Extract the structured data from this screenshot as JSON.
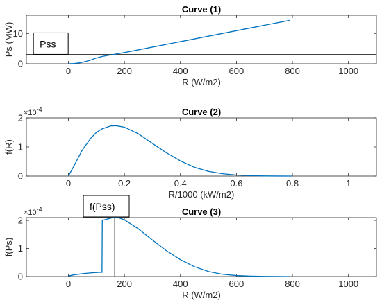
{
  "colors": {
    "line": "#0072BD",
    "axis": "#262626"
  },
  "chart_data": [
    {
      "type": "line",
      "title": "Curve (1)",
      "xlabel": "R (W/m2)",
      "ylabel": "Ps (MW)",
      "xlim": [
        -150,
        1100
      ],
      "ylim": [
        0,
        16
      ],
      "xticks": [
        0,
        200,
        400,
        600,
        800,
        1000
      ],
      "yticks": [
        0,
        10
      ],
      "ytick_labels": [
        "0",
        "10"
      ],
      "exponent_label": "",
      "grid": false,
      "series": [
        {
          "x": [
            0,
            20,
            40,
            60,
            80,
            100,
            120,
            140,
            160,
            200,
            300,
            400,
            500,
            600,
            700,
            790
          ],
          "y": [
            0,
            0.08,
            0.3,
            0.7,
            1.25,
            1.9,
            2.4,
            2.75,
            3.05,
            3.7,
            5.5,
            7.3,
            9.1,
            10.9,
            12.7,
            14.3
          ]
        }
      ],
      "hline": 3.1,
      "vline": null,
      "annotation": {
        "text": "Pss",
        "x": -100,
        "y": 3.1,
        "anchor": "bottom-left"
      }
    },
    {
      "type": "line",
      "title": "Curve (2)",
      "xlabel": "R/1000 (kW/m2)",
      "ylabel": "f(R)",
      "xlim": [
        -0.15,
        1.1
      ],
      "ylim": [
        0,
        2
      ],
      "xticks": [
        0,
        0.2,
        0.4,
        0.6,
        0.8,
        1
      ],
      "yticks": [
        0,
        1,
        2
      ],
      "ytick_labels": [
        "0",
        "1",
        "2"
      ],
      "exponent_label": "×10",
      "exponent_power": "-4",
      "grid": false,
      "series": [
        {
          "x": [
            0,
            0.02,
            0.05,
            0.08,
            0.1,
            0.12,
            0.15,
            0.17,
            0.2,
            0.25,
            0.3,
            0.35,
            0.4,
            0.45,
            0.5,
            0.55,
            0.6,
            0.65,
            0.7,
            0.75,
            0.8
          ],
          "y": [
            0,
            0.35,
            0.9,
            1.3,
            1.5,
            1.62,
            1.72,
            1.73,
            1.68,
            1.45,
            1.12,
            0.8,
            0.52,
            0.3,
            0.16,
            0.08,
            0.035,
            0.015,
            0.005,
            0.002,
            0
          ]
        }
      ],
      "hline": null,
      "vline": null,
      "annotation": null
    },
    {
      "type": "line",
      "title": "Curve (3)",
      "xlabel": "R (W/m2)",
      "ylabel": "f(Ps)",
      "xlim": [
        -150,
        1100
      ],
      "ylim": [
        0,
        2.1
      ],
      "xticks": [
        0,
        200,
        400,
        600,
        800,
        1000
      ],
      "yticks": [
        0,
        1,
        2
      ],
      "ytick_labels": [
        "0",
        "1",
        "2"
      ],
      "exponent_label": "×10",
      "exponent_power": "-4",
      "grid": false,
      "series": [
        {
          "x": [
            0,
            20,
            50,
            80,
            110,
            120,
            121,
            140,
            160,
            165,
            180,
            200,
            250,
            300,
            350,
            400,
            450,
            500,
            550,
            600,
            650,
            700,
            750,
            790
          ],
          "y": [
            0.02,
            0.06,
            0.1,
            0.13,
            0.15,
            0.15,
            2.0,
            2.05,
            2.1,
            2.1,
            2.09,
            2.02,
            1.7,
            1.3,
            0.92,
            0.6,
            0.35,
            0.18,
            0.08,
            0.035,
            0.015,
            0.005,
            0.001,
            0
          ]
        }
      ],
      "hline": null,
      "vline": 165,
      "annotation": {
        "text": "f(Pss)",
        "x": 165,
        "y": 2.1,
        "anchor": "bottom-center"
      }
    }
  ]
}
